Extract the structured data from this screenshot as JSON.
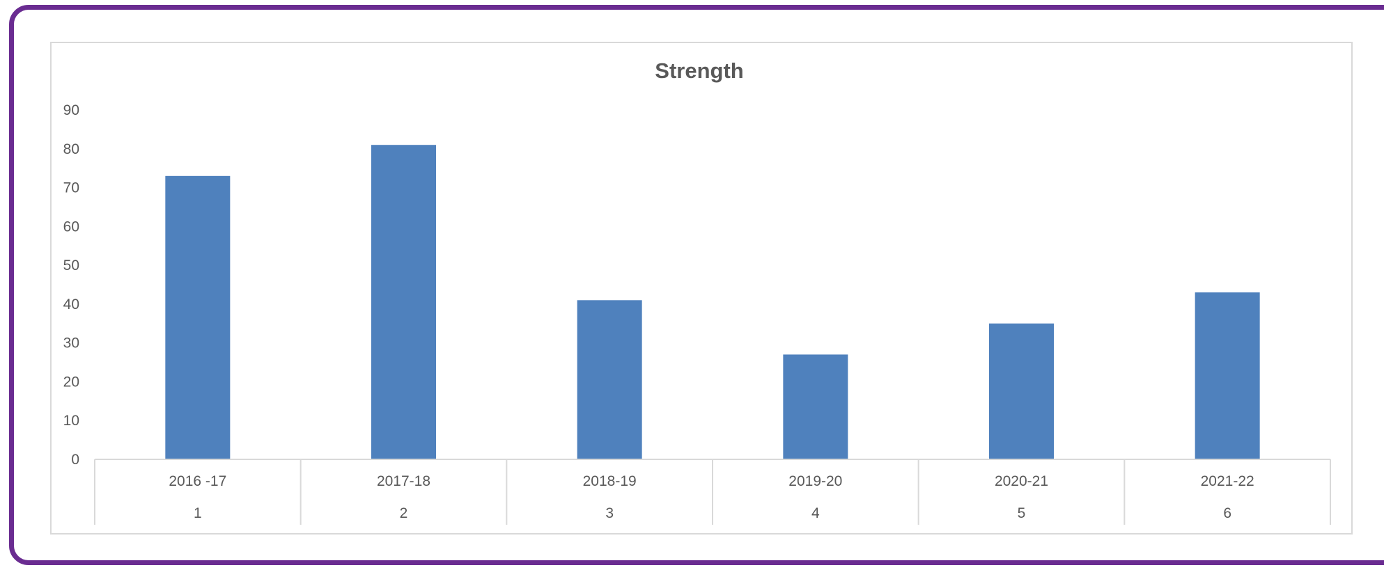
{
  "colors": {
    "frame_border": "#6a2c91",
    "bar_fill": "#4f81bd",
    "axis_text": "#595959",
    "grid_line": "#d9d9d9"
  },
  "chart_data": {
    "type": "bar",
    "title": "Strength",
    "categories": [
      "2016 -17",
      "2017-18",
      "2018-19",
      "2019-20",
      "2020-21",
      "2021-22"
    ],
    "category_numbers": [
      "1",
      "2",
      "3",
      "4",
      "5",
      "6"
    ],
    "values": [
      73,
      81,
      41,
      27,
      35,
      43
    ],
    "ylim": [
      0,
      90
    ],
    "yticks": [
      0,
      10,
      20,
      30,
      40,
      50,
      60,
      70,
      80,
      90
    ],
    "grid": false,
    "legend": "none"
  }
}
